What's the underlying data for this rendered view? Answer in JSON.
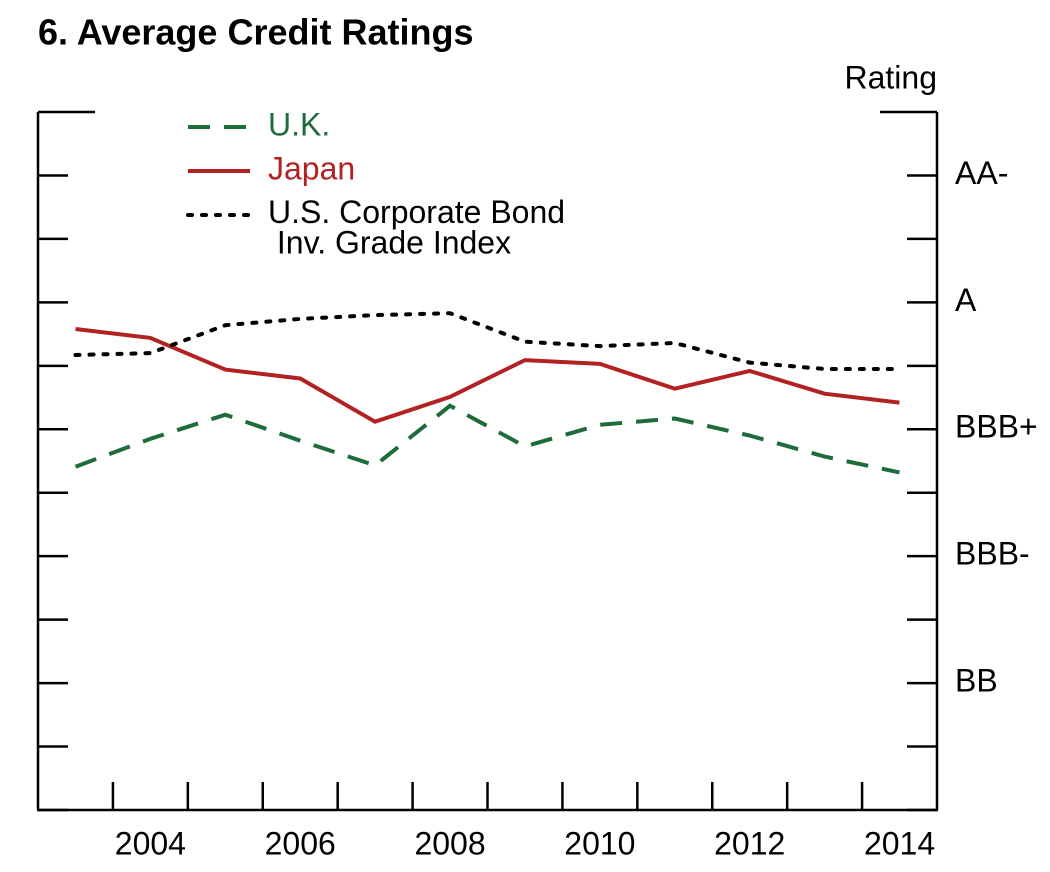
{
  "chart_data": {
    "type": "line",
    "title": "6. Average Credit Ratings",
    "y_axis_label": "Rating",
    "xlim": [
      2003,
      2015
    ],
    "x_mid_year": true,
    "xticks": [
      2004,
      2006,
      2008,
      2010,
      2012,
      2014
    ],
    "x_boundary_ticks": [
      2004,
      2005,
      2006,
      2007,
      2008,
      2009,
      2010,
      2011,
      2012,
      2013,
      2014
    ],
    "ylim": [
      -2,
      9
    ],
    "y_axis_side": "right",
    "yticks": [
      {
        "value": 8,
        "label": "AA-"
      },
      {
        "value": 6,
        "label": "A"
      },
      {
        "value": 4,
        "label": "BBB+"
      },
      {
        "value": 2,
        "label": "BBB-"
      },
      {
        "value": 0,
        "label": "BB"
      }
    ],
    "y_minor_ticks": [
      -2,
      -1,
      1,
      3,
      5,
      7,
      9
    ],
    "x": [
      2003,
      2004,
      2005,
      2006,
      2007,
      2008,
      2009,
      2010,
      2011,
      2012,
      2013,
      2014
    ],
    "series": [
      {
        "name": "U.K.",
        "color": "#1e6b3c",
        "dash": "dashed",
        "values": [
          3.41,
          3.85,
          4.23,
          3.82,
          3.43,
          4.37,
          3.73,
          4.07,
          4.17,
          3.9,
          3.57,
          3.32
        ]
      },
      {
        "name": "Japan",
        "color": "#b22222",
        "dash": "solid",
        "values": [
          5.58,
          5.44,
          4.94,
          4.8,
          4.12,
          4.51,
          5.09,
          5.03,
          4.64,
          4.92,
          4.56,
          4.42
        ]
      },
      {
        "name": "U.S. Corporate Bond\n Inv. Grade Index",
        "color": "#000000",
        "dash": "dotted",
        "values": [
          5.17,
          5.2,
          5.64,
          5.74,
          5.8,
          5.83,
          5.38,
          5.31,
          5.36,
          5.05,
          4.95,
          4.95
        ]
      }
    ]
  }
}
